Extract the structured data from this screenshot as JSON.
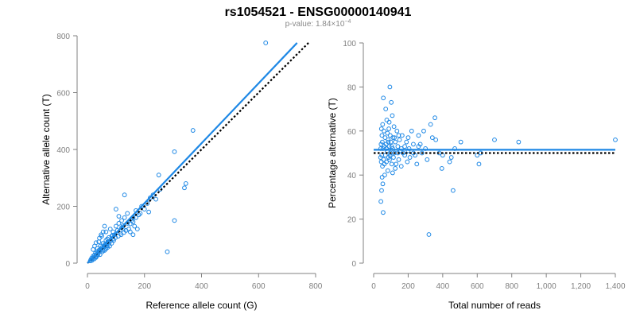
{
  "title": "rs1054521 - ENSG00000140941",
  "subtitle": {
    "prefix": "p-value: 1.84×10",
    "exponent": "−4"
  },
  "colors": {
    "points": "#1E88E5",
    "fit_line": "#1E88E5",
    "reference_line": "#000000",
    "axis": "#808080"
  },
  "chart_data": [
    {
      "type": "scatter",
      "xlabel": "Reference allele count (G)",
      "ylabel": "Alternative allele count (T)",
      "xlim": [
        0,
        800
      ],
      "ylim": [
        0,
        800
      ],
      "xticks": [
        0,
        200,
        400,
        600,
        800
      ],
      "yticks": [
        0,
        200,
        400,
        600,
        800
      ],
      "xtick_labels": [
        "0",
        "200",
        "400",
        "600",
        "800"
      ],
      "ytick_labels": [
        "0",
        "200",
        "400",
        "600",
        "800"
      ],
      "grid": false,
      "points": [
        [
          625,
          775
        ],
        [
          370,
          467
        ],
        [
          305,
          392
        ],
        [
          250,
          310
        ],
        [
          280,
          40
        ],
        [
          305,
          150
        ],
        [
          340,
          265
        ],
        [
          345,
          280
        ],
        [
          255,
          260
        ],
        [
          230,
          240
        ],
        [
          220,
          230
        ],
        [
          240,
          225
        ],
        [
          210,
          210
        ],
        [
          215,
          180
        ],
        [
          200,
          190
        ],
        [
          190,
          200
        ],
        [
          170,
          185
        ],
        [
          160,
          160
        ],
        [
          155,
          150
        ],
        [
          165,
          130
        ],
        [
          180,
          170
        ],
        [
          185,
          175
        ],
        [
          140,
          175
        ],
        [
          130,
          160
        ],
        [
          120,
          150
        ],
        [
          125,
          120
        ],
        [
          135,
          115
        ],
        [
          110,
          140
        ],
        [
          100,
          130
        ],
        [
          105,
          115
        ],
        [
          90,
          110
        ],
        [
          95,
          100
        ],
        [
          85,
          95
        ],
        [
          80,
          120
        ],
        [
          75,
          90
        ],
        [
          70,
          85
        ],
        [
          72,
          75
        ],
        [
          65,
          80
        ],
        [
          68,
          70
        ],
        [
          60,
          65
        ],
        [
          55,
          70
        ],
        [
          58,
          60
        ],
        [
          50,
          55
        ],
        [
          45,
          60
        ],
        [
          48,
          50
        ],
        [
          40,
          45
        ],
        [
          42,
          40
        ],
        [
          35,
          40
        ],
        [
          38,
          35
        ],
        [
          30,
          30
        ],
        [
          32,
          25
        ],
        [
          28,
          35
        ],
        [
          25,
          28
        ],
        [
          22,
          20
        ],
        [
          20,
          25
        ],
        [
          18,
          15
        ],
        [
          15,
          18
        ],
        [
          12,
          12
        ],
        [
          10,
          8
        ],
        [
          16,
          10
        ],
        [
          24,
          15
        ],
        [
          30,
          20
        ],
        [
          36,
          28
        ],
        [
          44,
          30
        ],
        [
          52,
          40
        ],
        [
          60,
          45
        ],
        [
          70,
          55
        ],
        [
          78,
          60
        ],
        [
          85,
          70
        ],
        [
          92,
          80
        ],
        [
          98,
          90
        ],
        [
          108,
          95
        ],
        [
          115,
          105
        ],
        [
          118,
          100
        ],
        [
          128,
          108
        ],
        [
          145,
          120
        ],
        [
          150,
          110
        ],
        [
          160,
          100
        ],
        [
          175,
          120
        ],
        [
          130,
          240
        ],
        [
          100,
          190
        ],
        [
          110,
          165
        ],
        [
          60,
          130
        ],
        [
          50,
          95
        ],
        [
          40,
          75
        ],
        [
          30,
          72
        ],
        [
          25,
          60
        ],
        [
          20,
          48
        ],
        [
          35,
          52
        ],
        [
          45,
          48
        ],
        [
          55,
          45
        ],
        [
          65,
          50
        ],
        [
          75,
          68
        ],
        [
          82,
          78
        ],
        [
          90,
          85
        ],
        [
          140,
          140
        ],
        [
          150,
          138
        ],
        [
          160,
          145
        ],
        [
          170,
          160
        ],
        [
          120,
          125
        ],
        [
          125,
          132
        ],
        [
          88,
          98
        ],
        [
          65,
          110
        ],
        [
          55,
          110
        ],
        [
          48,
          100
        ],
        [
          42,
          88
        ],
        [
          62,
          62
        ],
        [
          68,
          60
        ],
        [
          35,
          30
        ],
        [
          28,
          22
        ]
      ],
      "fit_line": [
        [
          0,
          0
        ],
        [
          735,
          775
        ]
      ],
      "reference_line": [
        [
          0,
          0
        ],
        [
          775,
          775
        ]
      ]
    },
    {
      "type": "scatter",
      "xlabel": "Total number of reads",
      "ylabel": "Percentage alternative (T)",
      "xlim": [
        0,
        1400
      ],
      "ylim": [
        0,
        100
      ],
      "xticks": [
        0,
        200,
        400,
        600,
        800,
        1000,
        1200,
        1400
      ],
      "yticks": [
        0,
        20,
        40,
        60,
        80,
        100
      ],
      "xtick_labels": [
        "0",
        "200",
        "400",
        "600",
        "800",
        "1,000",
        "1,200",
        "1,400"
      ],
      "ytick_labels": [
        "0",
        "20",
        "40",
        "60",
        "80",
        "100"
      ],
      "grid": false,
      "points": [
        [
          1400,
          56
        ],
        [
          840,
          55
        ],
        [
          700,
          56
        ],
        [
          620,
          50
        ],
        [
          610,
          45
        ],
        [
          600,
          49
        ],
        [
          505,
          55
        ],
        [
          470,
          52
        ],
        [
          450,
          48
        ],
        [
          460,
          33
        ],
        [
          440,
          46
        ],
        [
          400,
          49
        ],
        [
          395,
          43
        ],
        [
          380,
          50
        ],
        [
          360,
          56
        ],
        [
          355,
          66
        ],
        [
          340,
          57
        ],
        [
          330,
          63
        ],
        [
          320,
          13
        ],
        [
          310,
          47
        ],
        [
          300,
          52
        ],
        [
          290,
          60
        ],
        [
          280,
          50
        ],
        [
          270,
          54
        ],
        [
          260,
          58
        ],
        [
          250,
          45
        ],
        [
          240,
          49
        ],
        [
          230,
          54
        ],
        [
          220,
          60
        ],
        [
          210,
          48
        ],
        [
          205,
          52
        ],
        [
          200,
          57
        ],
        [
          195,
          46
        ],
        [
          190,
          55
        ],
        [
          180,
          53
        ],
        [
          170,
          50
        ],
        [
          165,
          58
        ],
        [
          160,
          44
        ],
        [
          155,
          51
        ],
        [
          150,
          56
        ],
        [
          145,
          47
        ],
        [
          140,
          53
        ],
        [
          135,
          60
        ],
        [
          130,
          45
        ],
        [
          125,
          55
        ],
        [
          120,
          50
        ],
        [
          118,
          62
        ],
        [
          115,
          48
        ],
        [
          112,
          57
        ],
        [
          110,
          52
        ],
        [
          108,
          67
        ],
        [
          105,
          45
        ],
        [
          102,
          73
        ],
        [
          100,
          55
        ],
        [
          98,
          50
        ],
        [
          96,
          58
        ],
        [
          94,
          80
        ],
        [
          92,
          47
        ],
        [
          90,
          53
        ],
        [
          88,
          61
        ],
        [
          86,
          48
        ],
        [
          84,
          56
        ],
        [
          82,
          42
        ],
        [
          80,
          59
        ],
        [
          78,
          51
        ],
        [
          76,
          65
        ],
        [
          74,
          46
        ],
        [
          72,
          54
        ],
        [
          70,
          70
        ],
        [
          68,
          49
        ],
        [
          66,
          57
        ],
        [
          64,
          40
        ],
        [
          62,
          53
        ],
        [
          60,
          60
        ],
        [
          58,
          47
        ],
        [
          56,
          75
        ],
        [
          55,
          23
        ],
        [
          54,
          52
        ],
        [
          53,
          36
        ],
        [
          52,
          63
        ],
        [
          51,
          44
        ],
        [
          50,
          55
        ],
        [
          49,
          39
        ],
        [
          48,
          58
        ],
        [
          47,
          49
        ],
        [
          46,
          33
        ],
        [
          45,
          61
        ],
        [
          44,
          46
        ],
        [
          43,
          54
        ],
        [
          42,
          28
        ],
        [
          41,
          52
        ],
        [
          40,
          48
        ],
        [
          62,
          45
        ],
        [
          75,
          52
        ],
        [
          85,
          55
        ],
        [
          95,
          49
        ],
        [
          105,
          53
        ],
        [
          120,
          57
        ],
        [
          140,
          50
        ],
        [
          160,
          52
        ],
        [
          180,
          49
        ],
        [
          200,
          51
        ],
        [
          230,
          50
        ],
        [
          260,
          53
        ],
        [
          145,
          58
        ],
        [
          125,
          43
        ],
        [
          110,
          41
        ],
        [
          90,
          64
        ]
      ],
      "fit_line": [
        [
          0,
          51.5
        ],
        [
          1400,
          51.5
        ]
      ],
      "reference_line": [
        [
          0,
          50
        ],
        [
          1400,
          50
        ]
      ]
    }
  ]
}
